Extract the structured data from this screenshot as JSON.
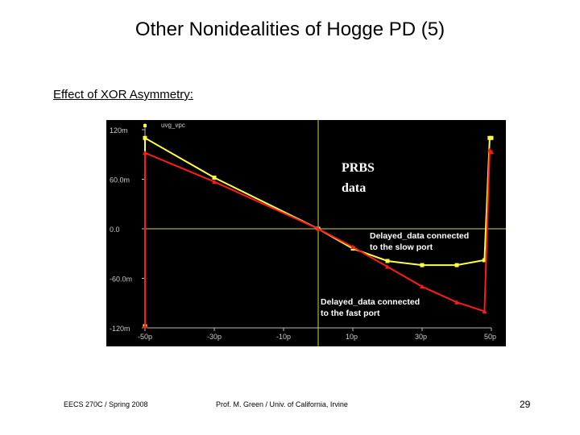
{
  "slide": {
    "title": "Other Nonidealities of Hogge PD (5)",
    "section_heading": "Effect of XOR Asymmetry:",
    "footer_left": "EECS 270C / Spring 2008",
    "footer_center": "Prof. M. Green / Univ. of California, Irvine",
    "page_number": "29"
  },
  "chart_data": {
    "type": "line",
    "background": "#000000",
    "legend_top": "uvg_vpc",
    "x_ticks": [
      "-50p",
      "-30p",
      "-10p",
      "10p",
      "30p",
      "50p"
    ],
    "y_ticks": [
      "120m",
      "60.0m",
      "0.0",
      "-60.0m",
      "-120m"
    ],
    "xlim": [
      -50,
      50
    ],
    "ylim": [
      -120,
      120
    ],
    "grid": "zero-crossing only",
    "annotations": [
      {
        "text": "PRBS",
        "color": "#ffffff"
      },
      {
        "text": "data",
        "color": "#ffffff"
      },
      {
        "text": "Delayed_data connected",
        "color": "#ffffff"
      },
      {
        "text": "to the slow port",
        "color": "#ffffff"
      },
      {
        "text": "Delayed_data connected",
        "color": "#ffffff"
      },
      {
        "text": "to the fast port",
        "color": "#ffffff"
      }
    ],
    "series": [
      {
        "color": "#ffff44",
        "x": [
          -50,
          -50,
          -30,
          0,
          10,
          20,
          30,
          40,
          48,
          49.5,
          50
        ],
        "y": [
          -118,
          110,
          62,
          0,
          -24,
          -39,
          -44,
          -44,
          -38,
          110,
          110
        ]
      },
      {
        "color": "#ff1a1a",
        "x": [
          -50,
          -50,
          -30,
          0,
          10,
          20,
          30,
          40,
          48,
          49.5,
          50
        ],
        "y": [
          -118,
          92,
          57,
          0,
          -22,
          -46,
          -70,
          -89,
          -100,
          95,
          93
        ]
      }
    ],
    "ui_colors": {
      "axis": "#bbbbbb",
      "crosshair": "#d4d43a",
      "tick_text": "#cccccc"
    }
  }
}
